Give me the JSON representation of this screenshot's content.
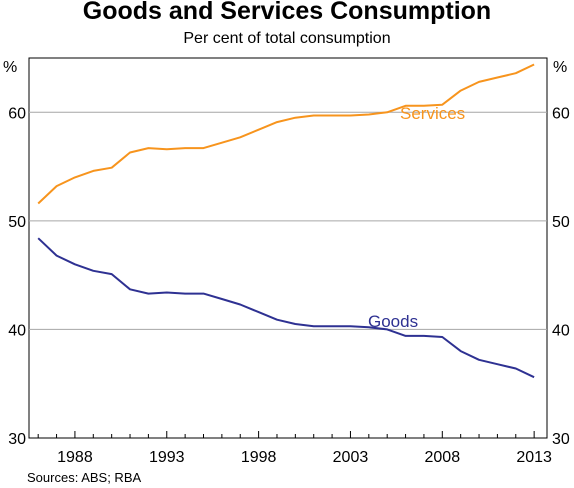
{
  "chart_data": {
    "type": "line",
    "title": "Goods and Services Consumption",
    "subtitle": "Per cent of total consumption",
    "unit_left": "%",
    "unit_right": "%",
    "source": "Sources: ABS; RBA",
    "xlim": [
      1985.5,
      2013.7
    ],
    "ylim": [
      30,
      65
    ],
    "yticks": [
      30,
      40,
      50,
      60
    ],
    "xticks": [
      1988,
      1993,
      1998,
      2003,
      2008,
      2013
    ],
    "grid": true,
    "x": [
      1986,
      1987,
      1988,
      1989,
      1990,
      1991,
      1992,
      1993,
      1994,
      1995,
      1996,
      1997,
      1998,
      1999,
      2000,
      2001,
      2002,
      2003,
      2004,
      2005,
      2006,
      2007,
      2008,
      2009,
      2010,
      2011,
      2012,
      2013
    ],
    "series": [
      {
        "name": "Services",
        "color": "#f7941d",
        "values": [
          51.6,
          53.2,
          54.0,
          54.6,
          54.9,
          56.3,
          56.7,
          56.6,
          56.7,
          56.7,
          57.2,
          57.7,
          58.4,
          59.1,
          59.5,
          59.7,
          59.7,
          59.7,
          59.8,
          60.0,
          60.6,
          60.6,
          60.7,
          62.0,
          62.8,
          63.2,
          63.6,
          64.4
        ]
      },
      {
        "name": "Goods",
        "color": "#2e3192",
        "values": [
          48.4,
          46.8,
          46.0,
          45.4,
          45.1,
          43.7,
          43.3,
          43.4,
          43.3,
          43.3,
          42.8,
          42.3,
          41.6,
          40.9,
          40.5,
          40.3,
          40.3,
          40.3,
          40.2,
          40.0,
          39.4,
          39.4,
          39.3,
          38.0,
          37.2,
          36.8,
          36.4,
          35.6
        ]
      }
    ]
  }
}
